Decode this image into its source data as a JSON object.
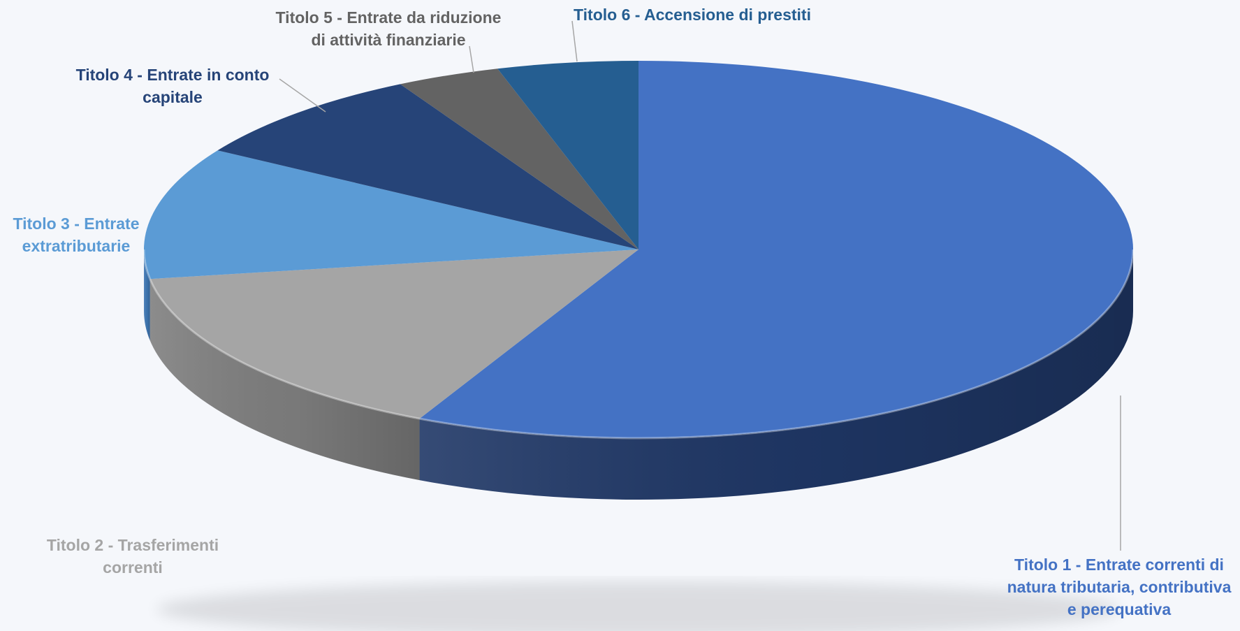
{
  "chart_data": {
    "type": "pie",
    "style": "3d-exploded-none",
    "title": "",
    "series": [
      {
        "slices": [
          {
            "label": "Titolo 1 - Entrate correnti di\nnatura tributaria, contributiva\ne perequativa",
            "value": 57.3,
            "color": "#4472c4",
            "side_color": "#1f3766",
            "label_color": "#4472c4"
          },
          {
            "label": "Titolo 2 - Trasferimenti\ncorrenti",
            "value": 15.2,
            "color": "#a5a5a5",
            "side_color": "#7f7f7f",
            "label_color": "#a5a5a5"
          },
          {
            "label": "Titolo 3 - Entrate\nextratributarie",
            "value": 11.3,
            "color": "#5b9bd5",
            "side_color": "#3f78b5",
            "label_color": "#5b9bd5"
          },
          {
            "label": "Titolo 4 - Entrate in conto\ncapitale",
            "value": 8.2,
            "color": "#264478",
            "side_color": "#1a2f55",
            "label_color": "#264478"
          },
          {
            "label": "Titolo 5 - Entrate da riduzione\ndi attività finanziarie",
            "value": 3.4,
            "color": "#636363",
            "side_color": "#4a4a4a",
            "label_color": "#636363"
          },
          {
            "label": "Titolo 6 - Accensione di prestiti",
            "value": 4.6,
            "color": "#255e91",
            "side_color": "#1b466c",
            "label_color": "#255e91"
          }
        ]
      }
    ],
    "legend": "none",
    "data_labels": "category-name-outside"
  }
}
